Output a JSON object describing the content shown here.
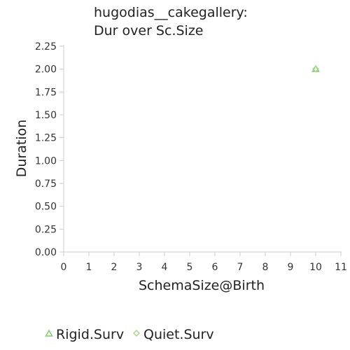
{
  "chart_data": {
    "type": "scatter",
    "title": [
      "hugodias__cakegallery:",
      "Dur over Sc.Size"
    ],
    "xlabel": "SchemaSize@Birth",
    "ylabel": "Duration",
    "xlim": [
      0,
      11
    ],
    "ylim": [
      0,
      2.25
    ],
    "xticks": [
      "0",
      "1",
      "2",
      "3",
      "4",
      "5",
      "6",
      "7",
      "8",
      "9",
      "10",
      "11"
    ],
    "yticks": [
      "0.00",
      "0.25",
      "0.50",
      "0.75",
      "1.00",
      "1.25",
      "1.50",
      "1.75",
      "2.00",
      "2.25"
    ],
    "grid": false,
    "legend_position": "bottom",
    "series": [
      {
        "name": "Rigid.Surv",
        "marker": "triangle-icon",
        "color": "#7fcf6a",
        "points": [
          {
            "x": 10,
            "y": 2
          }
        ]
      },
      {
        "name": "Quiet.Surv",
        "marker": "diamond-icon",
        "color": "#a6d88f",
        "points": [
          {
            "x": 10,
            "y": 2
          }
        ]
      }
    ]
  }
}
